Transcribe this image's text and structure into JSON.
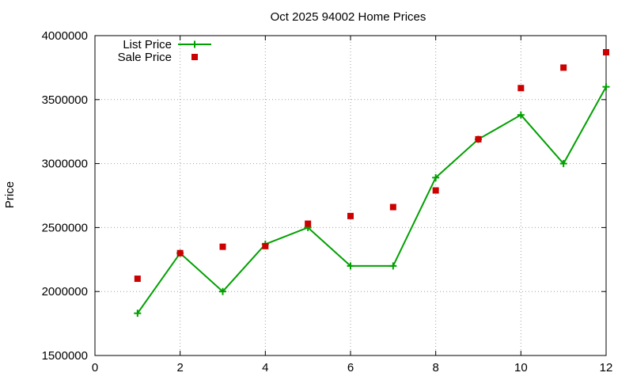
{
  "chart_data": {
    "type": "line",
    "title": "Oct 2025 94002 Home Prices",
    "xlabel": "",
    "ylabel": "Price",
    "xlim": [
      0,
      12
    ],
    "ylim": [
      1500000,
      4000000
    ],
    "x_ticks": [
      0,
      2,
      4,
      6,
      8,
      10,
      12
    ],
    "y_ticks": [
      1500000,
      2000000,
      2500000,
      3000000,
      3500000,
      4000000
    ],
    "grid": true,
    "legend_position": "top-left",
    "series": [
      {
        "name": "List Price",
        "style": "line+cross",
        "color": "#00a000",
        "x": [
          1,
          2,
          3,
          4,
          5,
          6,
          7,
          8,
          9,
          10,
          11,
          12
        ],
        "y": [
          1830000,
          2300000,
          2000000,
          2370000,
          2500000,
          2200000,
          2200000,
          2890000,
          3190000,
          3380000,
          3000000,
          3600000
        ]
      },
      {
        "name": "Sale Price",
        "style": "square",
        "color": "#cc0000",
        "x": [
          1,
          2,
          3,
          4,
          5,
          6,
          7,
          8,
          9,
          10,
          11,
          12
        ],
        "y": [
          2100000,
          2300000,
          2350000,
          2355000,
          2530000,
          2590000,
          2660000,
          2790000,
          3190000,
          3590000,
          3750000,
          3870000
        ]
      }
    ]
  }
}
